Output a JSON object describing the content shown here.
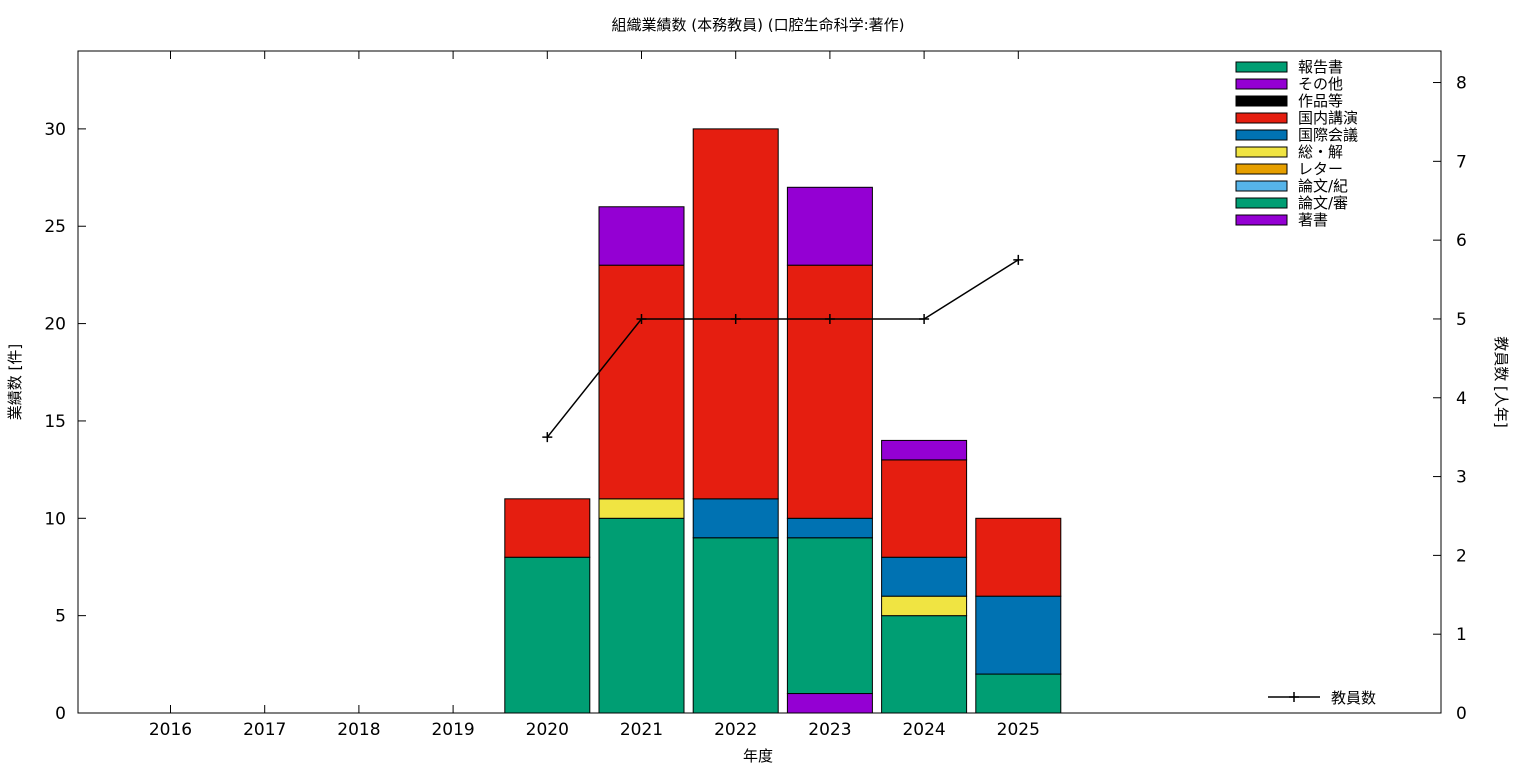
{
  "chart_data": {
    "type": "bar",
    "stacked": true,
    "title": "組織業績数 (本務教員) (口腔生命科学:著作)",
    "xlabel": "年度",
    "ylabel": "業績数 [件]",
    "y2label": "教員数 [人年]",
    "ylim": [
      0,
      34
    ],
    "y2lim": [
      0,
      8.4
    ],
    "yticks": [
      0,
      5,
      10,
      15,
      20,
      25,
      30
    ],
    "y2ticks": [
      0,
      1,
      2,
      3,
      4,
      5,
      6,
      7,
      8
    ],
    "categories": [
      "2016",
      "2017",
      "2018",
      "2019",
      "2020",
      "2021",
      "2022",
      "2023",
      "2024",
      "2025"
    ],
    "legend_position": "top-right",
    "series": [
      {
        "name": "著書",
        "color": "#9400d3",
        "values": [
          0,
          0,
          0,
          0,
          0,
          0,
          0,
          1,
          0,
          0
        ]
      },
      {
        "name": "論文/審",
        "color": "#009e73",
        "values": [
          0,
          0,
          0,
          0,
          8,
          10,
          9,
          8,
          5,
          2
        ]
      },
      {
        "name": "論文/紀",
        "color": "#56b4e9",
        "values": [
          0,
          0,
          0,
          0,
          0,
          0,
          0,
          0,
          0,
          0
        ]
      },
      {
        "name": "レター",
        "color": "#e69f00",
        "values": [
          0,
          0,
          0,
          0,
          0,
          0,
          0,
          0,
          0,
          0
        ]
      },
      {
        "name": "総・解",
        "color": "#f0e442",
        "values": [
          0,
          0,
          0,
          0,
          0,
          1,
          0,
          0,
          1,
          0
        ]
      },
      {
        "name": "国際会議",
        "color": "#0072b2",
        "values": [
          0,
          0,
          0,
          0,
          0,
          0,
          2,
          1,
          2,
          4
        ]
      },
      {
        "name": "国内講演",
        "color": "#e51e10",
        "values": [
          0,
          0,
          0,
          0,
          3,
          12,
          19,
          13,
          5,
          4
        ]
      },
      {
        "name": "作品等",
        "color": "#000000",
        "values": [
          0,
          0,
          0,
          0,
          0,
          0,
          0,
          0,
          0,
          0
        ]
      },
      {
        "name": "その他",
        "color": "#9400d3",
        "values": [
          0,
          0,
          0,
          0,
          0,
          3,
          0,
          4,
          1,
          0
        ]
      },
      {
        "name": "報告書",
        "color": "#009e73",
        "values": [
          0,
          0,
          0,
          0,
          0,
          0,
          0,
          0,
          0,
          0
        ]
      }
    ],
    "legend_order": [
      "報告書",
      "その他",
      "作品等",
      "国内講演",
      "国際会議",
      "総・解",
      "レター",
      "論文/紀",
      "論文/審",
      "著書"
    ],
    "line_series": {
      "name": "教員数",
      "axis": "y2",
      "color": "#000000",
      "x": [
        "2020",
        "2021",
        "2022",
        "2023",
        "2024",
        "2025"
      ],
      "values": [
        3.5,
        5,
        5,
        5,
        5,
        5.75
      ]
    }
  }
}
